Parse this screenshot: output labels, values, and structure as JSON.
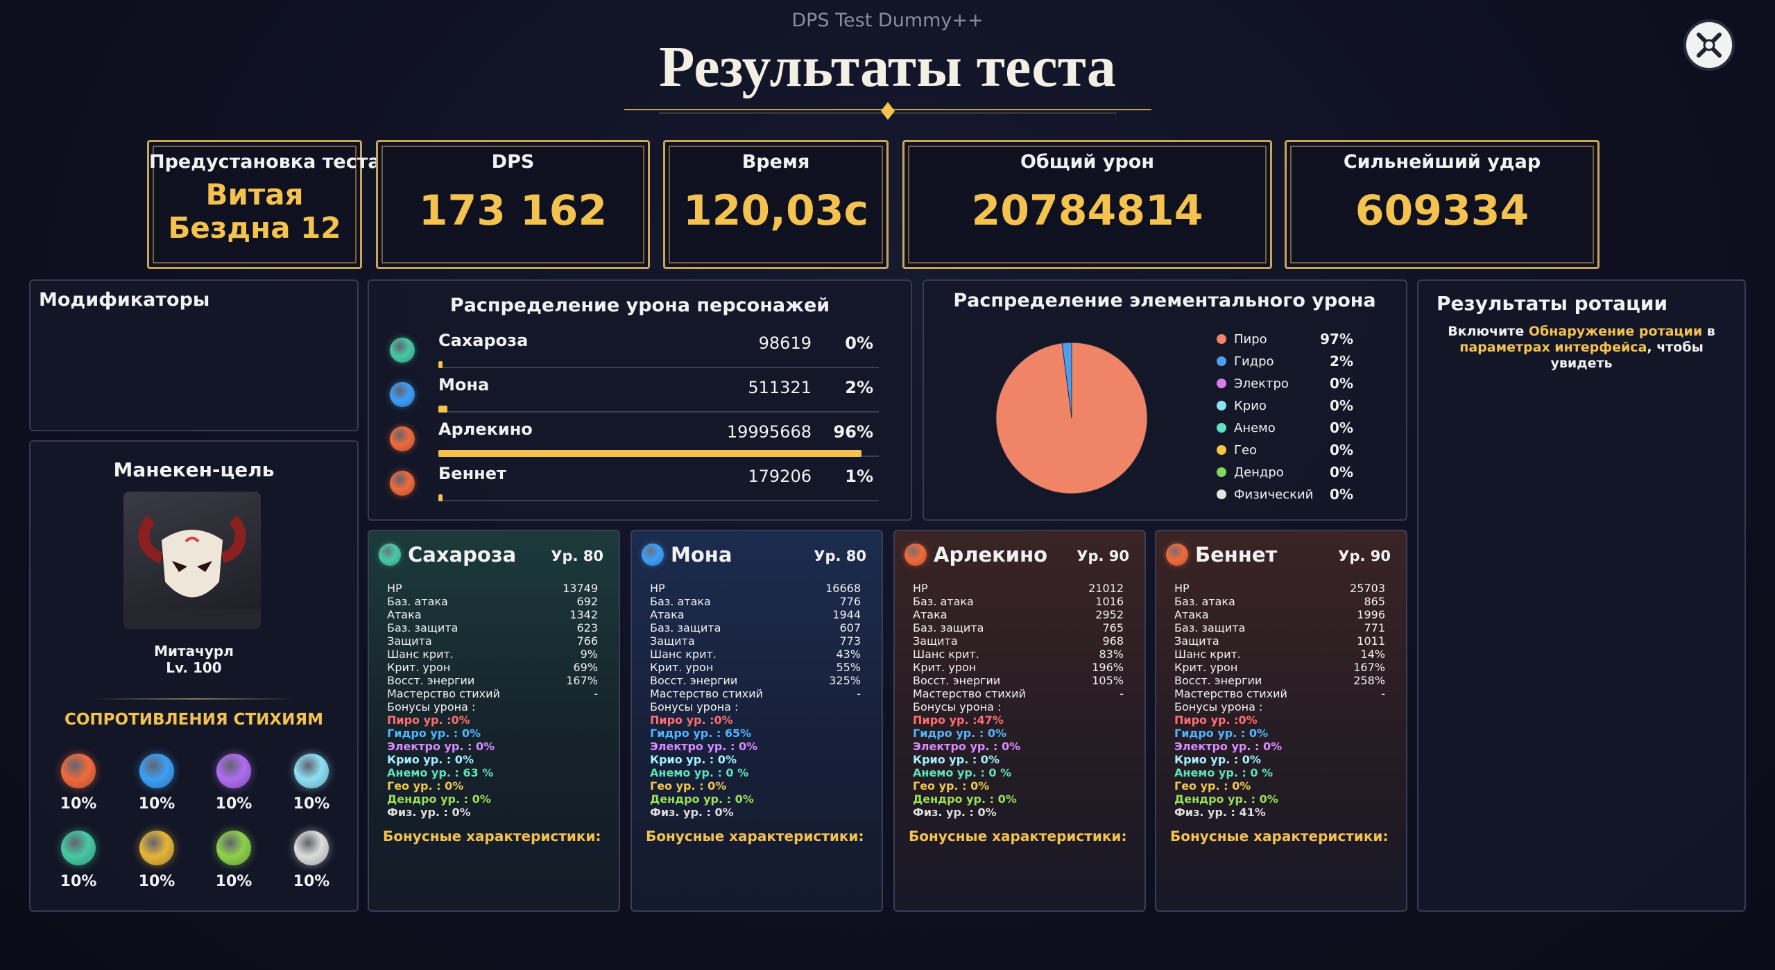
{
  "header": {
    "app": "DPS Test Dummy++",
    "title": "Результаты теста"
  },
  "summary": {
    "labels": [
      "Предустановка теста",
      "DPS",
      "Время",
      "Общий урон",
      "Сильнейший удар"
    ],
    "values": [
      "Витая Бездна 12",
      "173 162",
      "120,03с",
      "20784814",
      "609334"
    ]
  },
  "modifiers": {
    "title": "Модификаторы"
  },
  "target": {
    "title": "Манекен-цель",
    "name": "Митачурл",
    "level": "Lv. 100",
    "resistance_title": "СОПРОТИВЛЕНИЯ СТИХИЯМ",
    "resistances": [
      "10%",
      "10%",
      "10%",
      "10%",
      "10%",
      "10%",
      "10%",
      "10%"
    ]
  },
  "character_damage": {
    "title": "Распределение урона персонажей",
    "names": [
      "Сахароза",
      "Мона",
      "Арлекино",
      "Беннет"
    ],
    "damage": [
      98619,
      511321,
      19995668,
      179206
    ],
    "percents": [
      0,
      2,
      96,
      1
    ],
    "percent_labels": [
      "0%",
      "2%",
      "96%",
      "1%"
    ],
    "bar_color": "#f2c14e"
  },
  "chart_data": {
    "type": "pie",
    "title": "Распределение элементального урона",
    "categories": [
      "Пиро",
      "Гидро",
      "Электро",
      "Крио",
      "Анемо",
      "Гео",
      "Дендро",
      "Физический"
    ],
    "values": [
      97,
      2,
      0,
      0,
      0,
      0,
      0,
      0
    ],
    "value_labels": [
      "97%",
      "2%",
      "0%",
      "0%",
      "0%",
      "0%",
      "0%",
      "0%"
    ],
    "colors": [
      "#ef8566",
      "#4e9ef0",
      "#d77cf0",
      "#86e6f5",
      "#5fe0c0",
      "#f5c842",
      "#7cd95a",
      "#e4e4e4"
    ]
  },
  "rotation": {
    "title": "Результаты ротации",
    "text_1": "Включите",
    "link_1": "Обнаружение ротации",
    "text_2": "в",
    "link_2": "параметрах интерфейса",
    "text_3": ", чтобы увидеть"
  },
  "stat_labels": [
    "HP",
    "Баз. атака",
    "Атака",
    "Баз. защита",
    "Защита",
    "Шанс крит.",
    "Крит. урон",
    "Восст. энергии",
    "Мастерство стихий"
  ],
  "bonus_title": "Бонусы урона :",
  "bonus_stats_title": "Бонусные характеристики:",
  "cards": [
    {
      "name": "Сахароза",
      "level": "Ур. 80",
      "stats": [
        "13749",
        "692",
        "1342",
        "623",
        "766",
        "9%",
        "69%",
        "167%",
        "-"
      ],
      "bonuses": [
        "Пиро ур. :0%",
        "Гидро ур. : 0%",
        "Электро ур. : 0%",
        "Крио ур. : 0%",
        "Анемо ур. : 63 %",
        "Гео ур. : 0%",
        "Дендро ур. : 0%",
        "Физ. ур. : 0%"
      ]
    },
    {
      "name": "Мона",
      "level": "Ур. 80",
      "stats": [
        "16668",
        "776",
        "1944",
        "607",
        "773",
        "43%",
        "55%",
        "325%",
        "-"
      ],
      "bonuses": [
        "Пиро ур. :0%",
        "Гидро ур. : 65%",
        "Электро ур. : 0%",
        "Крио ур. : 0%",
        "Анемо ур. : 0 %",
        "Гео ур. : 0%",
        "Дендро ур. : 0%",
        "Физ. ур. : 0%"
      ]
    },
    {
      "name": "Арлекино",
      "level": "Ур. 90",
      "stats": [
        "21012",
        "1016",
        "2952",
        "765",
        "968",
        "83%",
        "196%",
        "105%",
        "-"
      ],
      "bonuses": [
        "Пиро ур. :47%",
        "Гидро ур. : 0%",
        "Электро ур. : 0%",
        "Крио ур. : 0%",
        "Анемо ур. : 0 %",
        "Гео ур. : 0%",
        "Дендро ур. : 0%",
        "Физ. ур. : 0%"
      ]
    },
    {
      "name": "Беннет",
      "level": "Ур. 90",
      "stats": [
        "25703",
        "865",
        "1996",
        "771",
        "1011",
        "14%",
        "167%",
        "258%",
        "-"
      ],
      "bonuses": [
        "Пиро ур. :0%",
        "Гидро ур. : 0%",
        "Электро ур. : 0%",
        "Крио ур. : 0%",
        "Анемо ур. : 0 %",
        "Гео ур. : 0%",
        "Дендро ур. : 0%",
        "Физ. ур. : 41%"
      ]
    }
  ]
}
